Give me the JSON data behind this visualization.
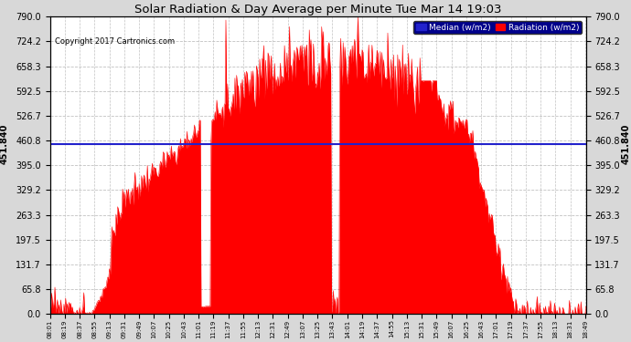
{
  "title": "Solar Radiation & Day Average per Minute Tue Mar 14 19:03",
  "copyright_text": "Copyright 2017 Cartronics.com",
  "median_value": 451.84,
  "median_label": "451.840",
  "y_max": 790.0,
  "y_min": 0.0,
  "y_ticks": [
    0.0,
    65.8,
    131.7,
    197.5,
    263.3,
    329.2,
    395.0,
    460.8,
    526.7,
    592.5,
    658.3,
    724.2,
    790.0
  ],
  "background_color": "#d8d8d8",
  "plot_bg_color": "#ffffff",
  "radiation_color": "#ff0000",
  "median_color": "#2222cc",
  "grid_color": "#bbbbbb",
  "title_color": "#000000",
  "x_start_hour": 8,
  "x_start_min": 1,
  "x_end_hour": 18,
  "x_end_min": 50,
  "legend_median_label": "Median (w/m2)",
  "legend_radiation_label": "Radiation (w/m2)",
  "left_ylabel": "451.840",
  "right_ylabel": "451.840",
  "tick_interval_min": 18
}
